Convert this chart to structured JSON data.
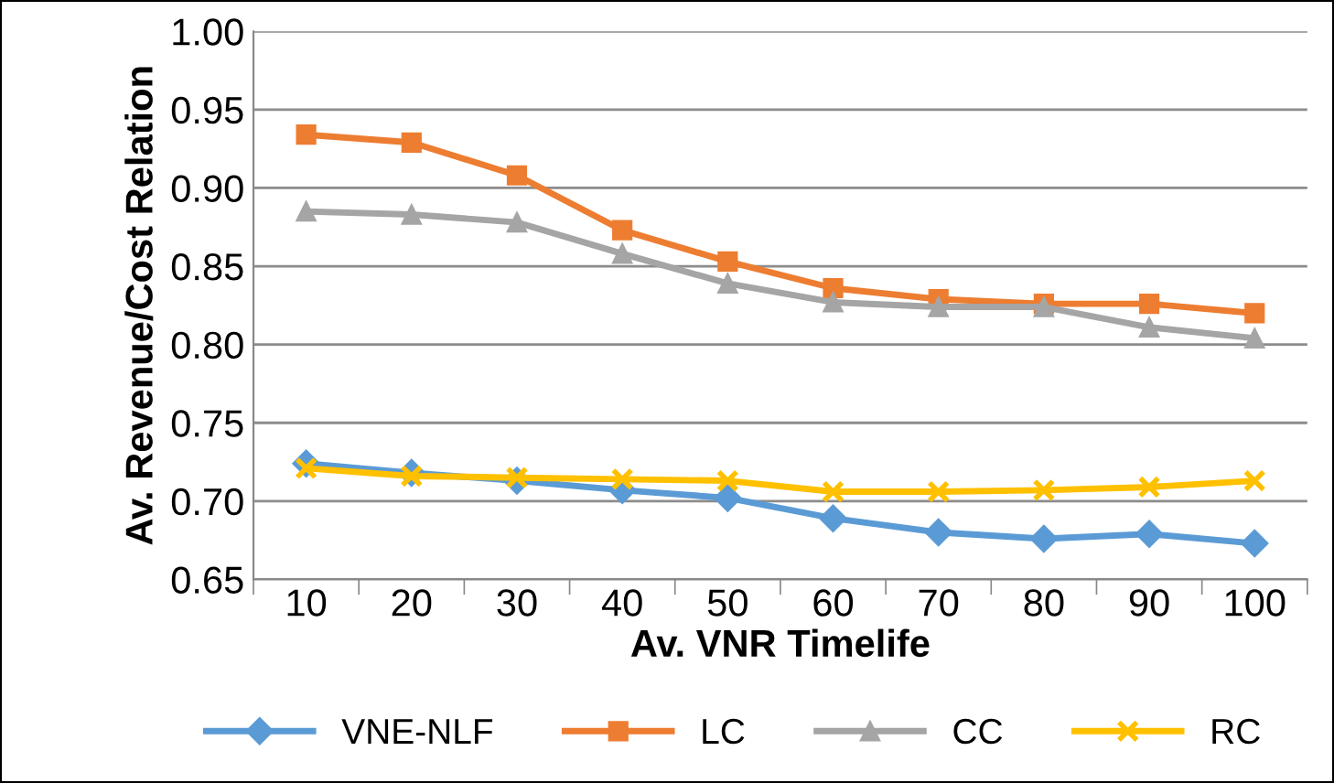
{
  "chart_data": {
    "type": "line",
    "xlabel": "Av. VNR Timelife",
    "ylabel": "Av. Revenue/Cost Relation",
    "categories": [
      "10",
      "20",
      "30",
      "40",
      "50",
      "60",
      "70",
      "80",
      "90",
      "100"
    ],
    "series": [
      {
        "name": "VNE-NLF",
        "color": "#5b9bd5",
        "marker": "diamond",
        "values": [
          0.724,
          0.718,
          0.713,
          0.707,
          0.702,
          0.689,
          0.68,
          0.676,
          0.679,
          0.673
        ]
      },
      {
        "name": "LC",
        "color": "#ed7d31",
        "marker": "square",
        "values": [
          0.934,
          0.929,
          0.908,
          0.873,
          0.853,
          0.836,
          0.829,
          0.826,
          0.826,
          0.82
        ]
      },
      {
        "name": "CC",
        "color": "#a5a5a5",
        "marker": "triangle",
        "values": [
          0.885,
          0.883,
          0.878,
          0.858,
          0.839,
          0.827,
          0.824,
          0.824,
          0.811,
          0.804
        ]
      },
      {
        "name": "RC",
        "color": "#ffc000",
        "marker": "cross",
        "values": [
          0.721,
          0.716,
          0.715,
          0.714,
          0.713,
          0.706,
          0.706,
          0.707,
          0.709,
          0.713
        ]
      }
    ],
    "ylim": [
      0.65,
      1.0
    ],
    "yticks": [
      {
        "value": 0.65,
        "label": "0.65"
      },
      {
        "value": 0.7,
        "label": "0.70"
      },
      {
        "value": 0.75,
        "label": "0.75"
      },
      {
        "value": 0.8,
        "label": "0.80"
      },
      {
        "value": 0.85,
        "label": "0.85"
      },
      {
        "value": 0.9,
        "label": "0.90"
      },
      {
        "value": 0.95,
        "label": "0.95"
      },
      {
        "value": 1.0,
        "label": "1.00"
      }
    ],
    "grid": "y",
    "legend": "bottom",
    "line_style": "solid"
  }
}
